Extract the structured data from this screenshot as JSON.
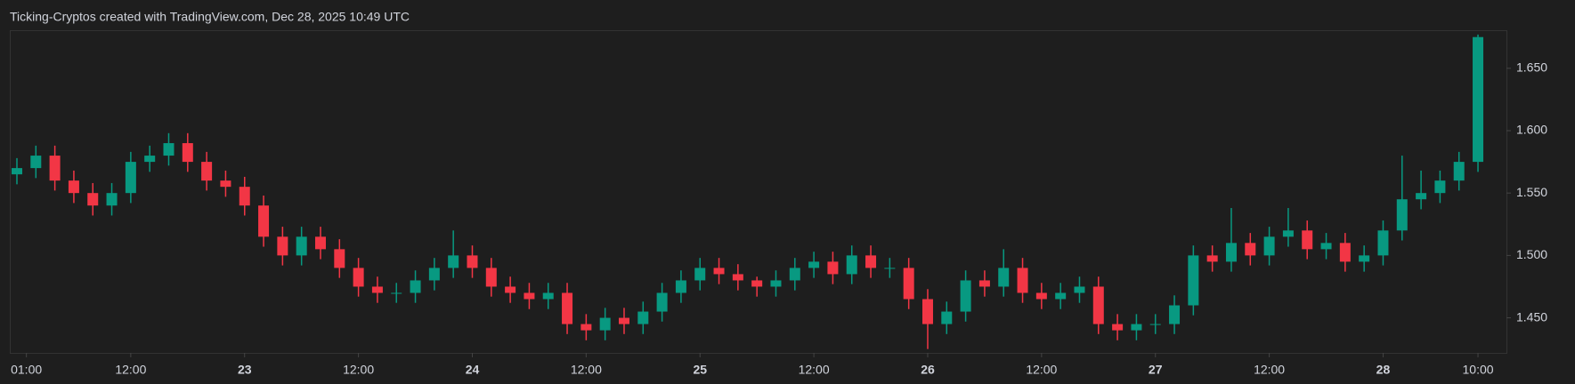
{
  "chart_data": {
    "type": "candlestick",
    "title": "Ticking-Cryptos created with TradingView.com, Dec 28, 2025 10:49 UTC",
    "x": [
      "2025-12-22T00:00",
      "2025-12-22T02:00",
      "2025-12-22T04:00",
      "2025-12-22T06:00",
      "2025-12-22T08:00",
      "2025-12-22T10:00",
      "2025-12-22T12:00",
      "2025-12-22T14:00",
      "2025-12-22T16:00",
      "2025-12-22T18:00",
      "2025-12-22T20:00",
      "2025-12-22T22:00",
      "2025-12-23T00:00",
      "2025-12-23T02:00",
      "2025-12-23T04:00",
      "2025-12-23T06:00",
      "2025-12-23T08:00",
      "2025-12-23T10:00",
      "2025-12-23T12:00",
      "2025-12-23T14:00",
      "2025-12-23T16:00",
      "2025-12-23T18:00",
      "2025-12-23T20:00",
      "2025-12-23T22:00",
      "2025-12-24T00:00",
      "2025-12-24T02:00",
      "2025-12-24T04:00",
      "2025-12-24T06:00",
      "2025-12-24T08:00",
      "2025-12-24T10:00",
      "2025-12-24T12:00",
      "2025-12-24T14:00",
      "2025-12-24T16:00",
      "2025-12-24T18:00",
      "2025-12-24T20:00",
      "2025-12-24T22:00",
      "2025-12-25T00:00",
      "2025-12-25T02:00",
      "2025-12-25T04:00",
      "2025-12-25T06:00",
      "2025-12-25T08:00",
      "2025-12-25T10:00",
      "2025-12-25T12:00",
      "2025-12-25T14:00",
      "2025-12-25T16:00",
      "2025-12-25T18:00",
      "2025-12-25T20:00",
      "2025-12-25T22:00",
      "2025-12-26T00:00",
      "2025-12-26T02:00",
      "2025-12-26T04:00",
      "2025-12-26T06:00",
      "2025-12-26T08:00",
      "2025-12-26T10:00",
      "2025-12-26T12:00",
      "2025-12-26T14:00",
      "2025-12-26T16:00",
      "2025-12-26T18:00",
      "2025-12-26T20:00",
      "2025-12-26T22:00",
      "2025-12-27T00:00",
      "2025-12-27T02:00",
      "2025-12-27T04:00",
      "2025-12-27T06:00",
      "2025-12-27T08:00",
      "2025-12-27T10:00",
      "2025-12-27T12:00",
      "2025-12-27T14:00",
      "2025-12-27T16:00",
      "2025-12-27T18:00",
      "2025-12-27T20:00",
      "2025-12-27T22:00",
      "2025-12-28T00:00",
      "2025-12-28T02:00",
      "2025-12-28T04:00",
      "2025-12-28T06:00",
      "2025-12-28T08:00",
      "2025-12-28T10:00"
    ],
    "open": [
      1.565,
      1.57,
      1.58,
      1.56,
      1.55,
      1.54,
      1.55,
      1.575,
      1.58,
      1.59,
      1.575,
      1.56,
      1.555,
      1.54,
      1.515,
      1.5,
      1.515,
      1.505,
      1.49,
      1.475,
      1.47,
      1.47,
      1.48,
      1.49,
      1.5,
      1.49,
      1.475,
      1.47,
      1.465,
      1.47,
      1.445,
      1.44,
      1.45,
      1.445,
      1.455,
      1.47,
      1.48,
      1.49,
      1.485,
      1.48,
      1.475,
      1.48,
      1.49,
      1.495,
      1.485,
      1.5,
      1.49,
      1.49,
      1.465,
      1.445,
      1.455,
      1.48,
      1.475,
      1.49,
      1.47,
      1.465,
      1.47,
      1.475,
      1.445,
      1.44,
      1.445,
      1.445,
      1.46,
      1.5,
      1.495,
      1.51,
      1.5,
      1.515,
      1.52,
      1.505,
      1.51,
      1.495,
      1.5,
      1.52,
      1.545,
      1.55,
      1.56,
      1.575
    ],
    "high": [
      1.578,
      1.588,
      1.588,
      1.568,
      1.558,
      1.558,
      1.583,
      1.588,
      1.598,
      1.598,
      1.583,
      1.568,
      1.563,
      1.548,
      1.523,
      1.523,
      1.523,
      1.513,
      1.498,
      1.483,
      1.478,
      1.488,
      1.498,
      1.52,
      1.508,
      1.498,
      1.483,
      1.478,
      1.478,
      1.478,
      1.453,
      1.458,
      1.458,
      1.463,
      1.478,
      1.488,
      1.498,
      1.498,
      1.493,
      1.483,
      1.488,
      1.498,
      1.503,
      1.503,
      1.508,
      1.508,
      1.498,
      1.498,
      1.473,
      1.463,
      1.488,
      1.488,
      1.505,
      1.498,
      1.478,
      1.478,
      1.483,
      1.483,
      1.453,
      1.453,
      1.453,
      1.468,
      1.508,
      1.508,
      1.538,
      1.518,
      1.523,
      1.538,
      1.528,
      1.518,
      1.518,
      1.508,
      1.528,
      1.58,
      1.568,
      1.568,
      1.583,
      1.677
    ],
    "low": [
      1.557,
      1.562,
      1.552,
      1.542,
      1.532,
      1.532,
      1.542,
      1.567,
      1.572,
      1.567,
      1.552,
      1.547,
      1.532,
      1.507,
      1.492,
      1.492,
      1.497,
      1.482,
      1.467,
      1.462,
      1.462,
      1.462,
      1.472,
      1.482,
      1.482,
      1.467,
      1.462,
      1.457,
      1.457,
      1.437,
      1.432,
      1.432,
      1.437,
      1.437,
      1.447,
      1.462,
      1.472,
      1.477,
      1.472,
      1.467,
      1.467,
      1.472,
      1.482,
      1.477,
      1.477,
      1.482,
      1.482,
      1.457,
      1.425,
      1.437,
      1.447,
      1.467,
      1.467,
      1.462,
      1.457,
      1.457,
      1.462,
      1.437,
      1.432,
      1.432,
      1.437,
      1.437,
      1.452,
      1.487,
      1.487,
      1.492,
      1.492,
      1.507,
      1.497,
      1.497,
      1.487,
      1.487,
      1.492,
      1.512,
      1.537,
      1.542,
      1.552,
      1.567
    ],
    "close": [
      1.57,
      1.58,
      1.56,
      1.55,
      1.54,
      1.55,
      1.575,
      1.58,
      1.59,
      1.575,
      1.56,
      1.555,
      1.54,
      1.515,
      1.5,
      1.515,
      1.505,
      1.49,
      1.475,
      1.47,
      1.47,
      1.48,
      1.49,
      1.5,
      1.49,
      1.475,
      1.47,
      1.465,
      1.47,
      1.445,
      1.44,
      1.45,
      1.445,
      1.455,
      1.47,
      1.48,
      1.49,
      1.485,
      1.48,
      1.475,
      1.48,
      1.49,
      1.495,
      1.485,
      1.5,
      1.49,
      1.49,
      1.465,
      1.445,
      1.455,
      1.48,
      1.475,
      1.49,
      1.47,
      1.465,
      1.47,
      1.475,
      1.445,
      1.44,
      1.445,
      1.445,
      1.46,
      1.5,
      1.495,
      1.51,
      1.5,
      1.515,
      1.52,
      1.505,
      1.51,
      1.495,
      1.5,
      1.52,
      1.545,
      1.55,
      1.56,
      1.575,
      1.675
    ],
    "up_color": "#089981",
    "down_color": "#f23645",
    "xlim": [
      "2025-12-21T23:15",
      "2025-12-28T13:00"
    ],
    "xticks": [
      {
        "value": "2025-12-22T01:00",
        "label": "01:00"
      },
      {
        "value": "2025-12-22T12:00",
        "label": "12:00"
      },
      {
        "value": "2025-12-23T00:00",
        "label": "23"
      },
      {
        "value": "2025-12-23T12:00",
        "label": "12:00"
      },
      {
        "value": "2025-12-24T00:00",
        "label": "24"
      },
      {
        "value": "2025-12-24T12:00",
        "label": "12:00"
      },
      {
        "value": "2025-12-25T00:00",
        "label": "25"
      },
      {
        "value": "2025-12-25T12:00",
        "label": "12:00"
      },
      {
        "value": "2025-12-26T00:00",
        "label": "26"
      },
      {
        "value": "2025-12-26T12:00",
        "label": "12:00"
      },
      {
        "value": "2025-12-27T00:00",
        "label": "27"
      },
      {
        "value": "2025-12-27T12:00",
        "label": "12:00"
      },
      {
        "value": "2025-12-28T00:00",
        "label": "28"
      },
      {
        "value": "2025-12-28T10:00",
        "label": "10:00"
      }
    ],
    "ylim": [
      1.4219,
      1.6805
    ],
    "yticks": [
      {
        "value": 1.45,
        "label": "1.450"
      },
      {
        "value": 1.5,
        "label": "1.500"
      },
      {
        "value": 1.55,
        "label": "1.550"
      },
      {
        "value": 1.6,
        "label": "1.600"
      },
      {
        "value": 1.65,
        "label": "1.650"
      }
    ]
  }
}
